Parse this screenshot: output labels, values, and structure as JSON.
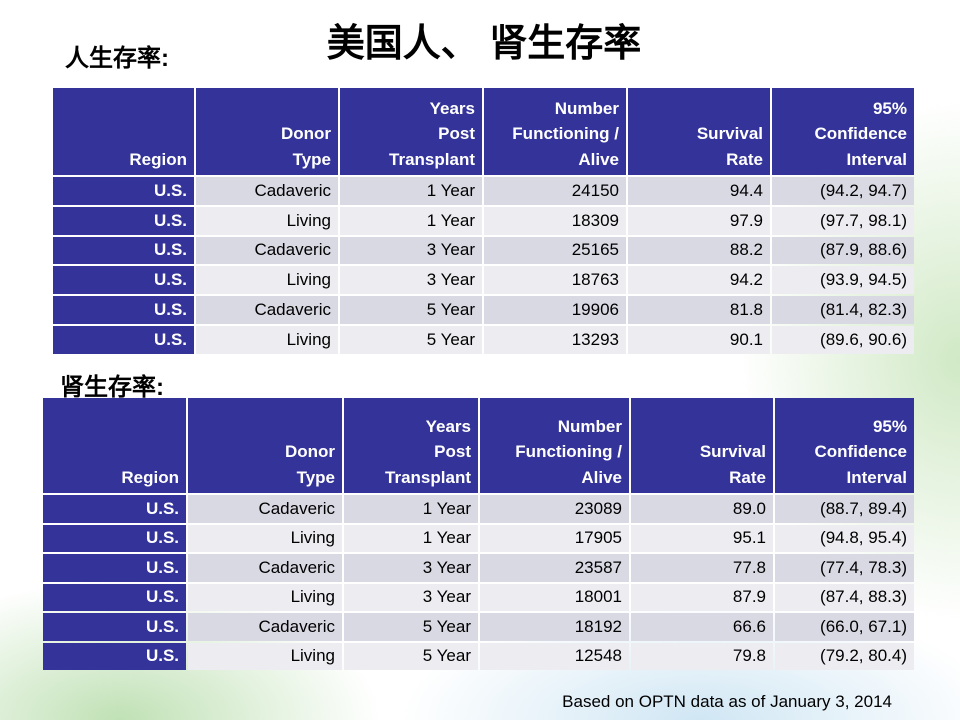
{
  "title": "美国人、 肾生存率",
  "sections": [
    {
      "label": "人生存率:",
      "header": [
        [
          "Region"
        ],
        [
          "Donor",
          "Type"
        ],
        [
          "Years",
          "Post",
          "Transplant"
        ],
        [
          "Number",
          "Functioning /",
          "Alive"
        ],
        [
          "Survival",
          "Rate"
        ],
        [
          "95%",
          "Confidence",
          "Interval"
        ]
      ],
      "rows": [
        [
          "U.S.",
          "Cadaveric",
          "1 Year",
          "24150",
          "94.4",
          "(94.2, 94.7)"
        ],
        [
          "U.S.",
          "Living",
          "1 Year",
          "18309",
          "97.9",
          "(97.7, 98.1)"
        ],
        [
          "U.S.",
          "Cadaveric",
          "3 Year",
          "25165",
          "88.2",
          "(87.9, 88.6)"
        ],
        [
          "U.S.",
          "Living",
          "3 Year",
          "18763",
          "94.2",
          "(93.9, 94.5)"
        ],
        [
          "U.S.",
          "Cadaveric",
          "5 Year",
          "19906",
          "81.8",
          "(81.4, 82.3)"
        ],
        [
          "U.S.",
          "Living",
          "5 Year",
          "13293",
          "90.1",
          "(89.6, 90.6)"
        ]
      ]
    },
    {
      "label": "肾生存率:",
      "header": [
        [
          "Region"
        ],
        [
          "Donor",
          "Type"
        ],
        [
          "Years",
          "Post",
          "Transplant"
        ],
        [
          "Number",
          "Functioning /",
          "Alive"
        ],
        [
          "Survival",
          "Rate"
        ],
        [
          "95%",
          "Confidence",
          "Interval"
        ]
      ],
      "rows": [
        [
          "U.S.",
          "Cadaveric",
          "1 Year",
          "23089",
          "89.0",
          "(88.7, 89.4)"
        ],
        [
          "U.S.",
          "Living",
          "1 Year",
          "17905",
          "95.1",
          "(94.8, 95.4)"
        ],
        [
          "U.S.",
          "Cadaveric",
          "3 Year",
          "23587",
          "77.8",
          "(77.4, 78.3)"
        ],
        [
          "U.S.",
          "Living",
          "3 Year",
          "18001",
          "87.9",
          "(87.4, 88.3)"
        ],
        [
          "U.S.",
          "Cadaveric",
          "5 Year",
          "18192",
          "66.6",
          "(66.0, 67.1)"
        ],
        [
          "U.S.",
          "Living",
          "5 Year",
          "12548",
          "79.8",
          "(79.2, 80.4)"
        ]
      ]
    }
  ],
  "footnote": "Based on OPTN data as of January 3, 2014"
}
